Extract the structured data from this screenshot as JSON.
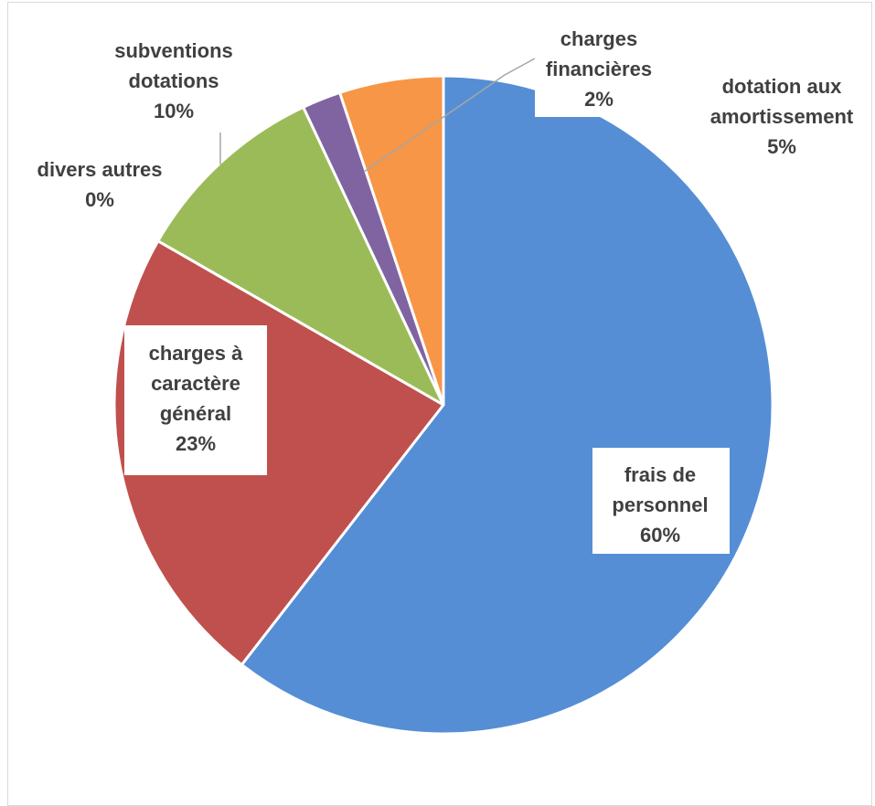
{
  "chart_data": {
    "type": "pie",
    "title": "",
    "start_angle_deg": 0,
    "direction": "clockwise",
    "slices": [
      {
        "label_lines": [
          "frais de",
          "personnel"
        ],
        "pct_label": "60%",
        "value": 60.5,
        "color": "#558ed5"
      },
      {
        "label_lines": [
          "charges à",
          "caractère",
          "général"
        ],
        "pct_label": "23%",
        "value": 22.8,
        "color": "#c0504d"
      },
      {
        "label_lines": [
          "divers autres"
        ],
        "pct_label": "0%",
        "value": 0.0,
        "color": "#4bacc6"
      },
      {
        "label_lines": [
          "subventions",
          "dotations"
        ],
        "pct_label": "10%",
        "value": 9.7,
        "color": "#9bbb59"
      },
      {
        "label_lines": [
          "charges",
          "financières"
        ],
        "pct_label": "2%",
        "value": 1.9,
        "color": "#8064a2"
      },
      {
        "label_lines": [
          "dotation aux",
          "amortissement"
        ],
        "pct_label": "5%",
        "value": 5.1,
        "color": "#f79646"
      }
    ]
  }
}
